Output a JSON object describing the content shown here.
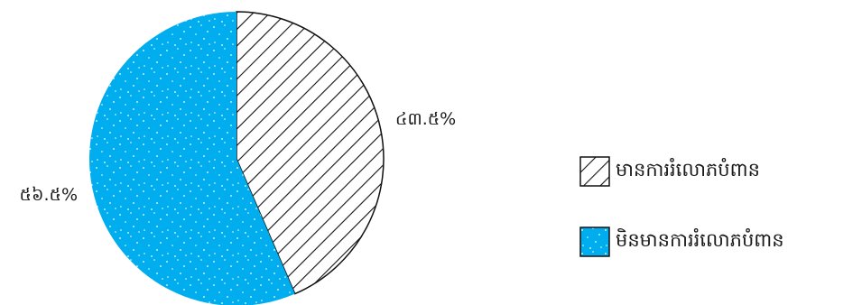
{
  "chart_data": {
    "type": "pie",
    "title": "",
    "slices": [
      {
        "name": "មានការរំលោភបំពាន",
        "value": 43.5,
        "label": "៤៣.៥%",
        "fill": "hatch",
        "color": "#000000"
      },
      {
        "name": "មិនមានការរំលោភបំពាន",
        "value": 56.5,
        "label": "៥៦.៥%",
        "fill": "dots",
        "color": "#00AEEF"
      }
    ],
    "legend_position": "right"
  }
}
